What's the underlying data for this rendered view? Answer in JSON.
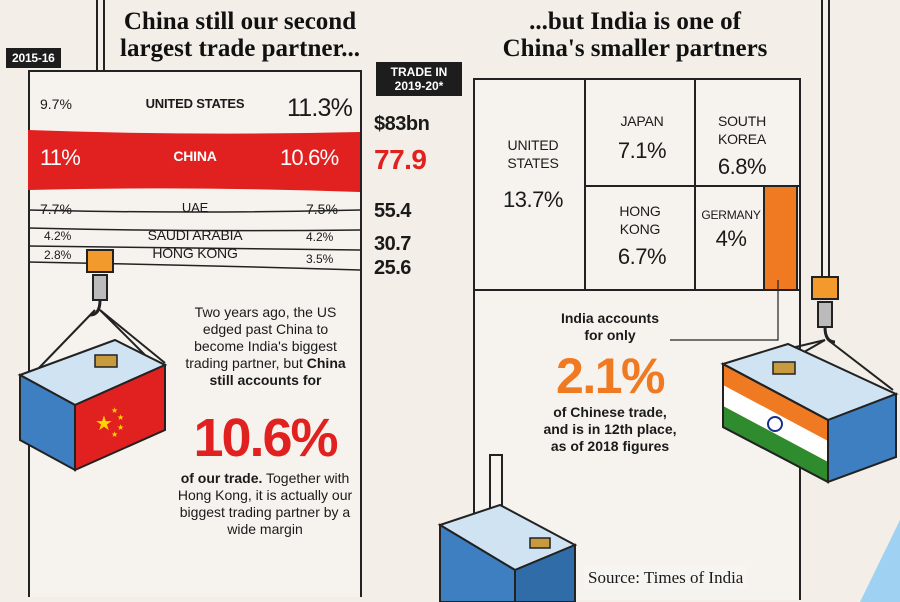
{
  "left": {
    "title_line1": "China still our second",
    "title_line2": "largest trade partner...",
    "year_badge": "2015-16",
    "trade_badge_line1": "TRADE IN",
    "trade_badge_line2": "2019-20*",
    "note": {
      "p1": "Two years ago, the US edged past China to become India's biggest trading partner, but",
      "p1_bold": "China still accounts for",
      "big_value": "10.6%",
      "p2_bold": "of our trade.",
      "p2": "Together with Hong Kong, it is actually our biggest trading partner by a wide margin"
    }
  },
  "right": {
    "title_line1": "...but India is one of",
    "title_line2": "China's smaller partners",
    "india_note": {
      "line1": "India accounts",
      "line2": "for only",
      "big_value": "2.1%",
      "line3": "of Chinese trade,",
      "line4": "and is in 12th place,",
      "line5": "as of 2018 figures"
    }
  },
  "source": "Source: Times of India",
  "colors": {
    "china_red": "#e0211f",
    "india_orange": "#f07a22",
    "container_blue": "#3d7fc0",
    "ink": "#1a1a1a",
    "paper": "#f3efe8"
  },
  "chart_data": [
    {
      "type": "table",
      "columns": [
        "2015-16",
        "",
        "",
        "TRADE IN 2019-20*"
      ],
      "rows": [
        {
          "left_pct": "9.7%",
          "country": "UNITED STATES",
          "right_pct": "11.3%",
          "trade": "$83bn",
          "highlight": false
        },
        {
          "left_pct": "11%",
          "country": "CHINA",
          "right_pct": "10.6%",
          "trade": "77.9",
          "highlight": true
        },
        {
          "left_pct": "7.7%",
          "country": "UAE",
          "right_pct": "7.5%",
          "trade": "55.4",
          "highlight": false
        },
        {
          "left_pct": "4.2%",
          "country": "SAUDI ARABIA",
          "right_pct": "4.2%",
          "trade": "30.7",
          "highlight": false
        },
        {
          "left_pct": "2.8%",
          "country": "HONG KONG",
          "right_pct": "3.5%",
          "trade": "25.6",
          "highlight": false
        }
      ]
    },
    {
      "type": "treemap",
      "cells": [
        {
          "label": "UNITED STATES",
          "value": "13.7%"
        },
        {
          "label": "JAPAN",
          "value": "7.1%"
        },
        {
          "label": "SOUTH KOREA",
          "value": "6.8%"
        },
        {
          "label": "HONG KONG",
          "value": "6.7%"
        },
        {
          "label": "GERMANY",
          "value": "4%"
        },
        {
          "label": "India",
          "value": "2.1%",
          "highlight": true
        }
      ]
    }
  ]
}
